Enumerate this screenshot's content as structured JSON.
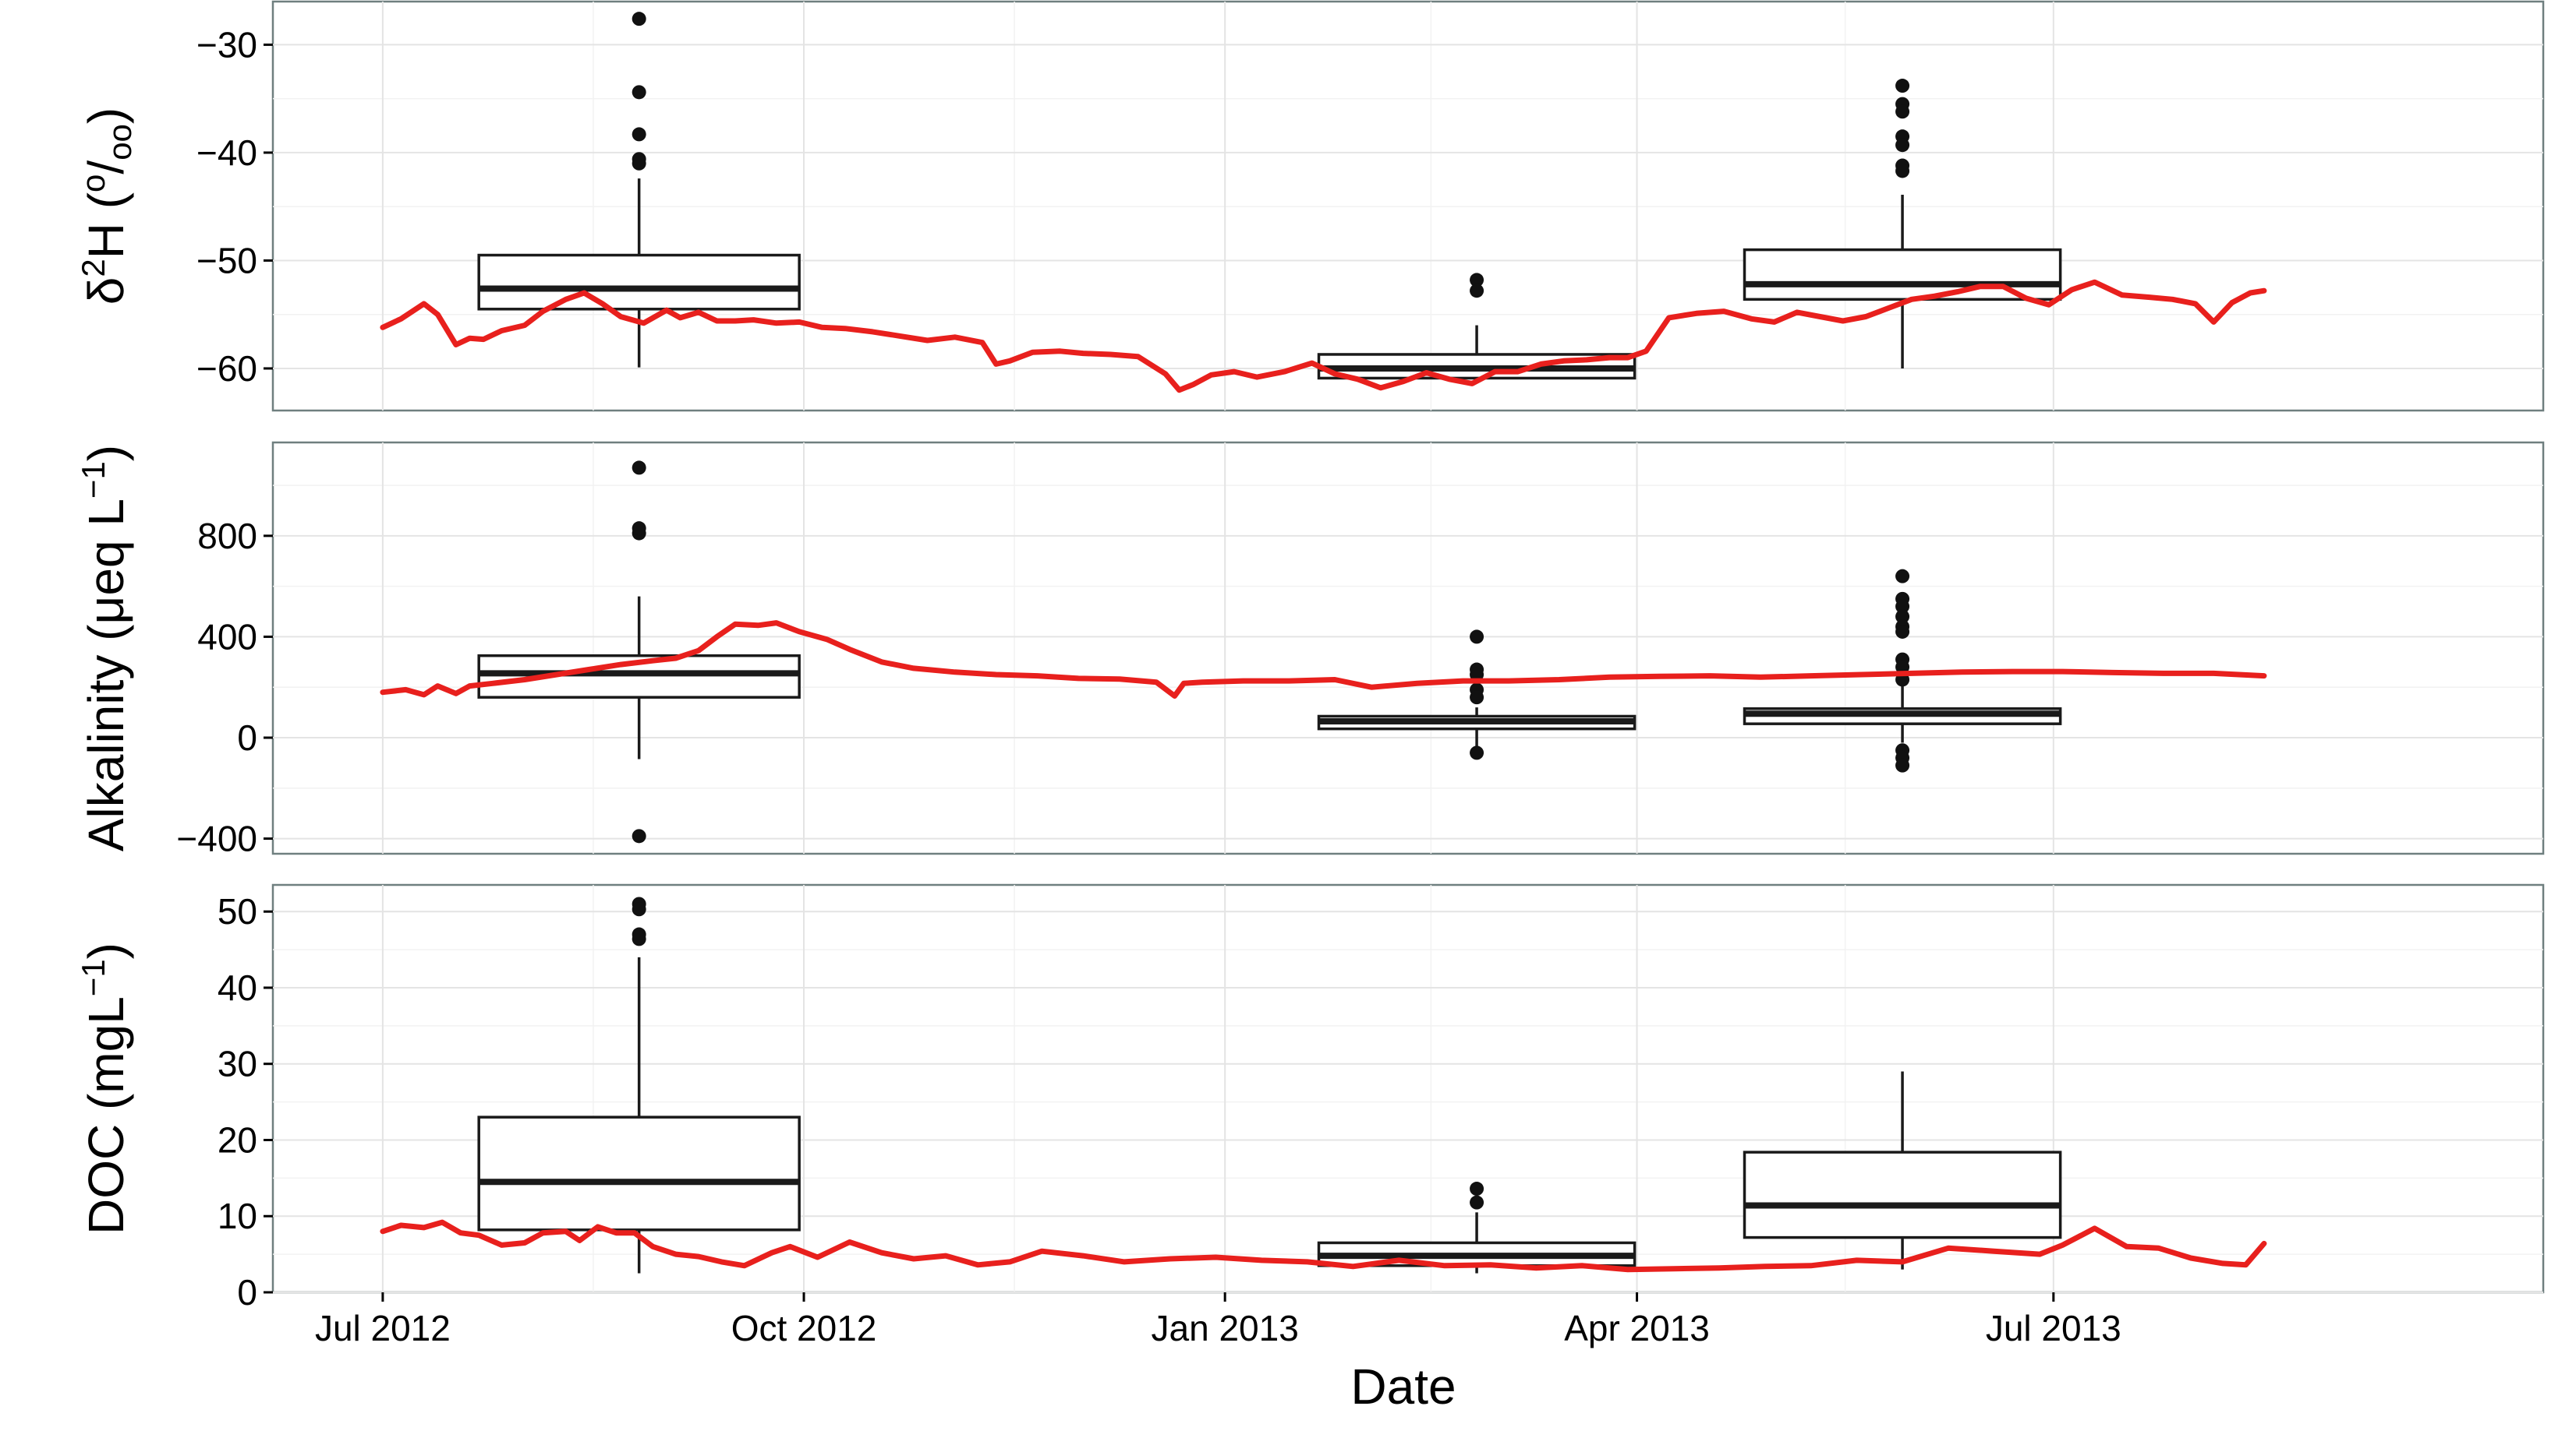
{
  "chart_data": {
    "type": "line",
    "xlabel": "Date",
    "x_ticks": [
      "Jul 2012",
      "Oct 2012",
      "Jan 2013",
      "Apr 2013",
      "Jul 2013"
    ],
    "x_tick_dates": [
      "2012-07-01",
      "2012-10-01",
      "2013-01-01",
      "2013-04-01",
      "2013-07-01"
    ],
    "xlim": [
      "2012-06-07",
      "2013-10-16"
    ],
    "line_color": "#e8201d",
    "box_color": "#1a1a1a",
    "grid": true,
    "panels": [
      {
        "id": "d2h",
        "ylabel_main": "δ",
        "ylabel_sup1": "2",
        "ylabel_mid": "H (",
        "ylabel_sup2": "o",
        "ylabel_sep": "/",
        "ylabel_sub": "oo",
        "ylabel_end": ")",
        "ylim": [
          -63.9,
          -26.0
        ],
        "y_ticks": [
          -30,
          -40,
          -50,
          -60
        ],
        "y_tick_labels": [
          "−30",
          "−40",
          "−50",
          "−60"
        ],
        "line": {
          "x": [
            "2012-07-01",
            "2012-07-05",
            "2012-07-10",
            "2012-07-13",
            "2012-07-17",
            "2012-07-20",
            "2012-07-23",
            "2012-07-27",
            "2012-08-01",
            "2012-08-05",
            "2012-08-10",
            "2012-08-14",
            "2012-08-18",
            "2012-08-22",
            "2012-08-27",
            "2012-09-01",
            "2012-09-04",
            "2012-09-08",
            "2012-09-12",
            "2012-09-16",
            "2012-09-20",
            "2012-09-25",
            "2012-09-30",
            "2012-10-05",
            "2012-10-10",
            "2012-10-16",
            "2012-10-22",
            "2012-10-28",
            "2012-11-03",
            "2012-11-09",
            "2012-11-12",
            "2012-11-15",
            "2012-11-20",
            "2012-11-26",
            "2012-12-01",
            "2012-12-07",
            "2012-12-13",
            "2012-12-19",
            "2012-12-22",
            "2012-12-25",
            "2012-12-29",
            "2013-01-03",
            "2013-01-08",
            "2013-01-14",
            "2013-01-20",
            "2013-01-25",
            "2013-01-30",
            "2013-02-04",
            "2013-02-09",
            "2013-02-14",
            "2013-02-19",
            "2013-02-24",
            "2013-03-01",
            "2013-03-06",
            "2013-03-11",
            "2013-03-16",
            "2013-03-21",
            "2013-03-26",
            "2013-03-30",
            "2013-04-03",
            "2013-04-08",
            "2013-04-14",
            "2013-04-20",
            "2013-04-26",
            "2013-05-01",
            "2013-05-06",
            "2013-05-11",
            "2013-05-16",
            "2013-05-21",
            "2013-05-26",
            "2013-05-31",
            "2013-06-05",
            "2013-06-10",
            "2013-06-15",
            "2013-06-20",
            "2013-06-25",
            "2013-06-30",
            "2013-07-05",
            "2013-07-10",
            "2013-07-16",
            "2013-07-22",
            "2013-07-27",
            "2013-08-01",
            "2013-08-05",
            "2013-08-09",
            "2013-08-13",
            "2013-08-16"
          ],
          "y": [
            -56.2,
            -55.4,
            -54.0,
            -55.0,
            -57.8,
            -57.2,
            -57.3,
            -56.5,
            -56.0,
            -54.7,
            -53.6,
            -53.0,
            -54.0,
            -55.2,
            -55.8,
            -54.6,
            -55.3,
            -54.8,
            -55.6,
            -55.6,
            -55.5,
            -55.8,
            -55.7,
            -56.2,
            -56.3,
            -56.6,
            -57.0,
            -57.4,
            -57.1,
            -57.6,
            -59.6,
            -59.3,
            -58.5,
            -58.4,
            -58.6,
            -58.7,
            -58.9,
            -60.5,
            -62.0,
            -61.5,
            -60.6,
            -60.3,
            -60.8,
            -60.3,
            -59.5,
            -60.5,
            -61.0,
            -61.8,
            -61.2,
            -60.4,
            -61.0,
            -61.4,
            -60.3,
            -60.3,
            -59.6,
            -59.3,
            -59.2,
            -59.0,
            -59.0,
            -58.4,
            -55.3,
            -54.9,
            -54.7,
            -55.4,
            -55.7,
            -54.8,
            -55.2,
            -55.6,
            -55.2,
            -54.4,
            -53.6,
            -53.3,
            -52.9,
            -52.4,
            -52.4,
            -53.5,
            -54.1,
            -52.7,
            -52.0,
            -53.2,
            -53.4,
            -53.6,
            -54.0,
            -55.7,
            -53.9,
            -53.0,
            -52.8
          ]
        },
        "boxes": [
          {
            "center": "2012-08-26",
            "width_days": 70,
            "q1": -54.5,
            "median": -52.6,
            "q3": -49.5,
            "lower": -59.9,
            "upper": -42.4,
            "outliers": [
              -27.6,
              -34.4,
              -38.3,
              -40.6,
              -41.0
            ]
          },
          {
            "center": "2013-02-25",
            "width_days": 69,
            "q1": -60.9,
            "median": -60.0,
            "q3": -58.7,
            "lower": -61.0,
            "upper": -56.0,
            "outliers": [
              -51.8,
              -52.8
            ]
          },
          {
            "center": "2013-05-29",
            "width_days": 69,
            "q1": -53.6,
            "median": -52.2,
            "q3": -49.0,
            "lower": -60.0,
            "upper": -43.9,
            "outliers": [
              -33.8,
              -35.5,
              -36.2,
              -38.5,
              -39.3,
              -41.2,
              -41.7
            ]
          }
        ]
      },
      {
        "id": "alkalinity",
        "ylabel_main": "Alkalinity (μeq L",
        "ylabel_sup1": "−1",
        "ylabel_end": ")",
        "ylim": [
          -460,
          1170
        ],
        "y_ticks": [
          800,
          400,
          0,
          -400
        ],
        "y_tick_labels": [
          "800",
          "400",
          "0",
          "−400"
        ],
        "line": {
          "x": [
            "2012-07-01",
            "2012-07-06",
            "2012-07-10",
            "2012-07-13",
            "2012-07-17",
            "2012-07-20",
            "2012-07-25",
            "2012-08-01",
            "2012-08-08",
            "2012-08-15",
            "2012-08-22",
            "2012-08-29",
            "2012-09-03",
            "2012-09-08",
            "2012-09-12",
            "2012-09-16",
            "2012-09-21",
            "2012-09-25",
            "2012-09-30",
            "2012-10-06",
            "2012-10-11",
            "2012-10-18",
            "2012-10-25",
            "2012-11-03",
            "2012-11-12",
            "2012-11-21",
            "2012-11-30",
            "2012-12-09",
            "2012-12-17",
            "2012-12-21",
            "2012-12-23",
            "2012-12-27",
            "2013-01-05",
            "2013-01-15",
            "2013-01-25",
            "2013-02-02",
            "2013-02-12",
            "2013-02-22",
            "2013-03-04",
            "2013-03-15",
            "2013-03-26",
            "2013-04-06",
            "2013-04-17",
            "2013-04-28",
            "2013-05-09",
            "2013-05-20",
            "2013-05-31",
            "2013-06-11",
            "2013-06-22",
            "2013-07-03",
            "2013-07-14",
            "2013-07-25",
            "2013-08-05",
            "2013-08-16"
          ],
          "y": [
            180,
            190,
            170,
            205,
            175,
            205,
            215,
            230,
            250,
            270,
            290,
            305,
            315,
            345,
            400,
            450,
            445,
            455,
            420,
            390,
            350,
            300,
            275,
            260,
            250,
            245,
            235,
            232,
            220,
            165,
            215,
            220,
            225,
            225,
            230,
            200,
            215,
            225,
            225,
            230,
            240,
            243,
            245,
            240,
            245,
            250,
            255,
            260,
            262,
            262,
            258,
            255,
            255,
            245
          ]
        },
        "boxes": [
          {
            "center": "2012-08-26",
            "width_days": 70,
            "q1": 160,
            "median": 255,
            "q3": 325,
            "lower": -85,
            "upper": 560,
            "outliers": [
              1070,
              810,
              830,
              -390
            ]
          },
          {
            "center": "2013-02-25",
            "width_days": 69,
            "q1": 35,
            "median": 65,
            "q3": 85,
            "lower": -40,
            "upper": 120,
            "outliers": [
              400,
              270,
              250,
              190,
              160,
              -60
            ]
          },
          {
            "center": "2013-05-29",
            "width_days": 69,
            "q1": 55,
            "median": 95,
            "q3": 115,
            "lower": -20,
            "upper": 220,
            "outliers": [
              640,
              550,
              520,
              480,
              440,
              420,
              310,
              280,
              230,
              -50,
              -80,
              -110
            ]
          }
        ]
      },
      {
        "id": "doc",
        "ylabel_main": "DOC (mgL",
        "ylabel_sup1": "−1",
        "ylabel_end": ")",
        "ylim": [
          0,
          53.5
        ],
        "y_ticks": [
          50,
          40,
          30,
          20,
          10,
          0
        ],
        "y_tick_labels": [
          "50",
          "40",
          "30",
          "20",
          "10",
          "0"
        ],
        "line": {
          "x": [
            "2012-07-01",
            "2012-07-05",
            "2012-07-10",
            "2012-07-14",
            "2012-07-18",
            "2012-07-22",
            "2012-07-27",
            "2012-08-01",
            "2012-08-05",
            "2012-08-10",
            "2012-08-13",
            "2012-08-17",
            "2012-08-21",
            "2012-08-25",
            "2012-08-29",
            "2012-09-03",
            "2012-09-08",
            "2012-09-13",
            "2012-09-18",
            "2012-09-24",
            "2012-09-28",
            "2012-10-04",
            "2012-10-11",
            "2012-10-18",
            "2012-10-25",
            "2012-11-01",
            "2012-11-08",
            "2012-11-15",
            "2012-11-22",
            "2012-12-01",
            "2012-12-10",
            "2012-12-20",
            "2012-12-30",
            "2013-01-09",
            "2013-01-19",
            "2013-01-29",
            "2013-02-08",
            "2013-02-18",
            "2013-02-28",
            "2013-03-10",
            "2013-03-20",
            "2013-03-30",
            "2013-04-09",
            "2013-04-19",
            "2013-04-29",
            "2013-05-09",
            "2013-05-19",
            "2013-05-29",
            "2013-06-08",
            "2013-06-18",
            "2013-06-28",
            "2013-07-03",
            "2013-07-10",
            "2013-07-17",
            "2013-07-24",
            "2013-07-31",
            "2013-08-07",
            "2013-08-12",
            "2013-08-16"
          ],
          "y": [
            8.0,
            8.8,
            8.5,
            9.2,
            7.8,
            7.5,
            6.2,
            6.5,
            7.8,
            8.0,
            6.8,
            8.6,
            7.8,
            7.8,
            6.0,
            5.0,
            4.7,
            4.0,
            3.5,
            5.2,
            6.0,
            4.6,
            6.6,
            5.2,
            4.4,
            4.8,
            3.6,
            4.0,
            5.4,
            4.8,
            4.0,
            4.4,
            4.6,
            4.2,
            4.0,
            3.4,
            4.2,
            3.5,
            3.6,
            3.2,
            3.5,
            3.0,
            3.1,
            3.2,
            3.4,
            3.5,
            4.2,
            4.0,
            5.8,
            5.4,
            5.0,
            6.2,
            8.4,
            6.0,
            5.8,
            4.5,
            3.8,
            3.6,
            6.4
          ]
        },
        "boxes": [
          {
            "center": "2012-08-26",
            "width_days": 70,
            "q1": 8.2,
            "median": 14.5,
            "q3": 23.0,
            "lower": 2.5,
            "upper": 44.0,
            "outliers": [
              51.0,
              50.3,
              47.0,
              46.4
            ]
          },
          {
            "center": "2013-02-25",
            "width_days": 69,
            "q1": 3.5,
            "median": 4.8,
            "q3": 6.5,
            "lower": 2.5,
            "upper": 10.5,
            "outliers": [
              13.6,
              11.8
            ]
          },
          {
            "center": "2013-05-29",
            "width_days": 69,
            "q1": 7.2,
            "median": 11.4,
            "q3": 18.4,
            "lower": 3.0,
            "upper": 29.0,
            "outliers": []
          }
        ]
      }
    ]
  }
}
